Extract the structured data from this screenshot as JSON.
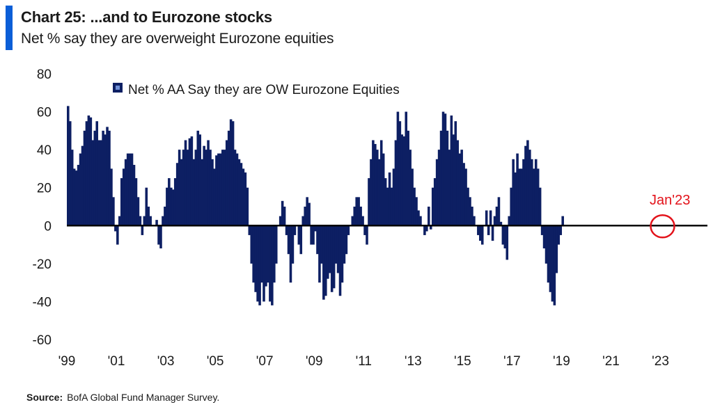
{
  "header": {
    "title": "Chart 25: ...and to Eurozone stocks",
    "subtitle": "Net % say they are overweight Eurozone equities"
  },
  "source": {
    "label": "Source:",
    "text": "BofA Global Fund Manager Survey."
  },
  "colors": {
    "bar": "#0d1f63",
    "accent": "#0b5ed7",
    "annotation": "#e3131b",
    "zero_line": "#000000"
  },
  "chart_data": {
    "type": "bar",
    "title": "Chart 25: ...and to Eurozone stocks",
    "subtitle": "Net % say they are overweight Eurozone equities",
    "ylim": [
      -60,
      80
    ],
    "yticks": [
      -60,
      -40,
      -20,
      0,
      20,
      40,
      60,
      80
    ],
    "xlim": [
      1999.0,
      2024.9
    ],
    "xticks": [
      {
        "value": 1999,
        "label": "'99"
      },
      {
        "value": 2001,
        "label": "'01"
      },
      {
        "value": 2003,
        "label": "'03"
      },
      {
        "value": 2005,
        "label": "'05"
      },
      {
        "value": 2007,
        "label": "'07"
      },
      {
        "value": 2009,
        "label": "'09"
      },
      {
        "value": 2011,
        "label": "'11"
      },
      {
        "value": 2013,
        "label": "'13"
      },
      {
        "value": 2015,
        "label": "'15"
      },
      {
        "value": 2017,
        "label": "'17"
      },
      {
        "value": 2019,
        "label": "'19"
      },
      {
        "value": 2021,
        "label": "'21"
      },
      {
        "value": 2023,
        "label": "'23"
      }
    ],
    "legend": {
      "position": "top-left",
      "entries": [
        "Net % AA Say they are OW Eurozone Equities"
      ]
    },
    "annotation": {
      "label": "Jan'23",
      "x": 2023.0,
      "y": 0
    },
    "grid": false,
    "series": [
      {
        "name": "Net % AA Say they are OW Eurozone Equities",
        "start": "1999-01",
        "frequency": "monthly",
        "values": [
          63,
          55,
          40,
          30,
          29,
          32,
          38,
          42,
          50,
          55,
          58,
          57,
          45,
          50,
          55,
          45,
          45,
          50,
          48,
          52,
          50,
          30,
          15,
          -3,
          -10,
          5,
          25,
          30,
          35,
          38,
          38,
          38,
          32,
          25,
          15,
          5,
          -5,
          5,
          20,
          10,
          5,
          0,
          0,
          3,
          -10,
          -12,
          5,
          10,
          20,
          25,
          20,
          19,
          25,
          33,
          40,
          35,
          40,
          45,
          40,
          46,
          47,
          35,
          40,
          50,
          48,
          35,
          42,
          40,
          45,
          40,
          35,
          30,
          37,
          38,
          38,
          40,
          40,
          45,
          50,
          56,
          55,
          40,
          38,
          35,
          33,
          30,
          28,
          20,
          -5,
          -20,
          -30,
          -35,
          -40,
          -42,
          -30,
          -40,
          -32,
          -30,
          -40,
          -42,
          -30,
          -20,
          0,
          5,
          13,
          10,
          -5,
          -15,
          -30,
          -20,
          -5,
          0,
          -10,
          -15,
          5,
          10,
          15,
          12,
          -10,
          -10,
          -3,
          -15,
          -30,
          -20,
          -39,
          -37,
          -28,
          -25,
          -35,
          -33,
          -20,
          -25,
          -37,
          -30,
          -20,
          -15,
          -5,
          0,
          5,
          10,
          15,
          15,
          10,
          5,
          -5,
          -10,
          25,
          35,
          45,
          43,
          40,
          35,
          45,
          38,
          25,
          20,
          28,
          20,
          30,
          45,
          60,
          55,
          48,
          47,
          60,
          50,
          40,
          30,
          20,
          15,
          8,
          5,
          0,
          -5,
          -3,
          10,
          -2,
          20,
          25,
          35,
          40,
          50,
          60,
          59,
          50,
          40,
          58,
          48,
          55,
          45,
          38,
          40,
          33,
          30,
          20,
          15,
          10,
          5,
          0,
          -5,
          -8,
          -10,
          0,
          8,
          -5,
          8,
          -8,
          5,
          10,
          15,
          2,
          -10,
          -12,
          -18,
          5,
          20,
          35,
          28,
          38,
          30,
          30,
          35,
          42,
          45,
          40,
          35,
          30,
          35,
          30,
          20,
          -5,
          -12,
          -20,
          -30,
          -35,
          -40,
          -42,
          -25,
          -10,
          -5,
          5
        ]
      }
    ]
  }
}
